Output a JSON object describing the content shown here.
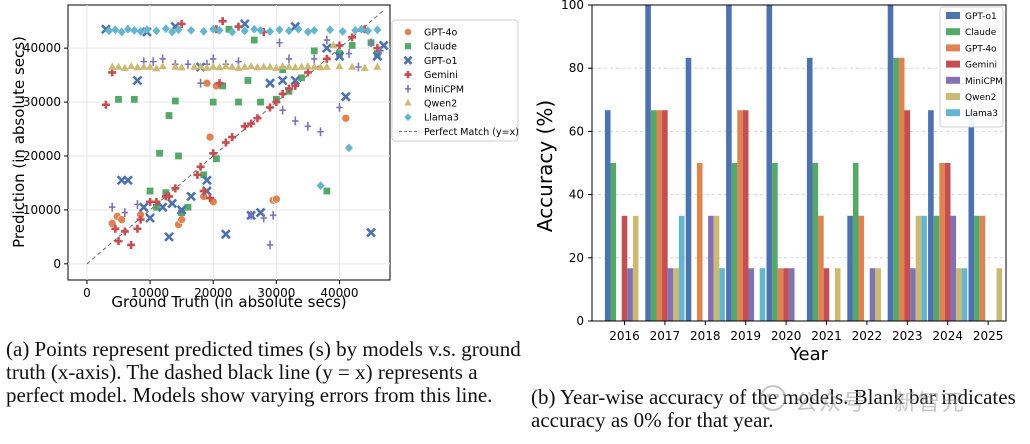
{
  "chart_data": [
    {
      "type": "scatter",
      "xlabel": "Ground Truth (in absolute secs)",
      "ylabel": "Prediction (in absolute secs)",
      "xlim": [
        -3000,
        48000
      ],
      "ylim": [
        -3000,
        48000
      ],
      "xticks": [
        0,
        10000,
        20000,
        30000,
        40000
      ],
      "yticks": [
        0,
        10000,
        20000,
        30000,
        40000
      ],
      "grid": true,
      "legend_position": "right",
      "reference_line": {
        "name": "Perfect Match (y=x)",
        "color": "#666666"
      },
      "series": [
        {
          "name": "GPT-4o",
          "color": "#dd8452",
          "marker": "circle",
          "points": [
            [
              4000,
              7500
            ],
            [
              4800,
              8800
            ],
            [
              5500,
              8200
            ],
            [
              8500,
              9100
            ],
            [
              14500,
              7300
            ],
            [
              19500,
              23500
            ],
            [
              19000,
              33500
            ],
            [
              20500,
              33000
            ],
            [
              18500,
              12500
            ],
            [
              20000,
              11500
            ],
            [
              29500,
              11800
            ],
            [
              30000,
              12000
            ],
            [
              41000,
              27000
            ],
            [
              15000,
              8200
            ]
          ]
        },
        {
          "name": "Claude",
          "color": "#55a868",
          "marker": "square",
          "points": [
            [
              5000,
              30500
            ],
            [
              7500,
              30500
            ],
            [
              10000,
              13500
            ],
            [
              11000,
              10500
            ],
            [
              11500,
              20500
            ],
            [
              12500,
              13200
            ],
            [
              13000,
              27500
            ],
            [
              14500,
              20000
            ],
            [
              15000,
              9500
            ],
            [
              16000,
              10500
            ],
            [
              18500,
              16500
            ],
            [
              20000,
              30000
            ],
            [
              20500,
              19500
            ],
            [
              21500,
              33000
            ],
            [
              24000,
              30000
            ],
            [
              25500,
              34000
            ],
            [
              26500,
              41500
            ],
            [
              27500,
              30000
            ],
            [
              30000,
              30500
            ],
            [
              31000,
              36000
            ],
            [
              32000,
              32000
            ],
            [
              34000,
              34500
            ],
            [
              36000,
              39500
            ],
            [
              38000,
              13500
            ],
            [
              40000,
              39000
            ],
            [
              42000,
              40500
            ],
            [
              45000,
              41000
            ],
            [
              46000,
              39000
            ],
            [
              22500,
              43500
            ],
            [
              14000,
              30200
            ]
          ]
        },
        {
          "name": "GPT-o1",
          "color": "#4c72b0",
          "marker": "x",
          "points": [
            [
              3000,
              43500
            ],
            [
              5500,
              15500
            ],
            [
              6500,
              15500
            ],
            [
              8000,
              34000
            ],
            [
              9000,
              10500
            ],
            [
              10000,
              8500
            ],
            [
              12000,
              10500
            ],
            [
              13000,
              5000
            ],
            [
              13500,
              11200
            ],
            [
              15000,
              10000
            ],
            [
              16500,
              12500
            ],
            [
              19000,
              13500
            ],
            [
              19000,
              15500
            ],
            [
              22000,
              5500
            ],
            [
              25000,
              44500
            ],
            [
              26000,
              9000
            ],
            [
              27500,
              9500
            ],
            [
              29000,
              33500
            ],
            [
              31000,
              34000
            ],
            [
              33000,
              34000
            ],
            [
              33000,
              44000
            ],
            [
              38000,
              40000
            ],
            [
              40000,
              38500
            ],
            [
              41000,
              31000
            ],
            [
              45000,
              5800
            ],
            [
              46000,
              38500
            ],
            [
              47000,
              40500
            ],
            [
              18000,
              36500
            ],
            [
              9500,
              43000
            ],
            [
              14000,
              44000
            ]
          ]
        },
        {
          "name": "Gemini",
          "color": "#c44e52",
          "marker": "plus",
          "points": [
            [
              3000,
              29500
            ],
            [
              4000,
              35500
            ],
            [
              4500,
              6500
            ],
            [
              5000,
              4200
            ],
            [
              6000,
              6000
            ],
            [
              7000,
              3500
            ],
            [
              8000,
              6500
            ],
            [
              8500,
              8200
            ],
            [
              10000,
              11500
            ],
            [
              11000,
              11500
            ],
            [
              12500,
              12500
            ],
            [
              13000,
              12500
            ],
            [
              14000,
              14000
            ],
            [
              15000,
              44500
            ],
            [
              17500,
              16500
            ],
            [
              18000,
              18000
            ],
            [
              18500,
              13500
            ],
            [
              19500,
              12200
            ],
            [
              20000,
              20500
            ],
            [
              20500,
              43500
            ],
            [
              21000,
              33500
            ],
            [
              21500,
              45000
            ],
            [
              22000,
              22500
            ],
            [
              23000,
              23500
            ],
            [
              24000,
              44000
            ],
            [
              25000,
              25500
            ],
            [
              26000,
              26000
            ],
            [
              27000,
              27000
            ],
            [
              28000,
              43000
            ],
            [
              29000,
              29000
            ],
            [
              30000,
              30000
            ],
            [
              31000,
              31500
            ],
            [
              32000,
              32500
            ],
            [
              33000,
              33000
            ],
            [
              35000,
              35500
            ],
            [
              38000,
              38000
            ],
            [
              40000,
              40500
            ],
            [
              42000,
              42000
            ],
            [
              44000,
              43500
            ],
            [
              46000,
              40000
            ]
          ]
        },
        {
          "name": "MiniCPM",
          "color": "#8172b3",
          "marker": "thin-plus",
          "points": [
            [
              4000,
              10500
            ],
            [
              6000,
              9500
            ],
            [
              8000,
              11000
            ],
            [
              9000,
              37500
            ],
            [
              10500,
              37500
            ],
            [
              12000,
              38000
            ],
            [
              14000,
              37000
            ],
            [
              16000,
              37000
            ],
            [
              18000,
              33500
            ],
            [
              19000,
              37000
            ],
            [
              20000,
              38000
            ],
            [
              22000,
              37000
            ],
            [
              24000,
              37500
            ],
            [
              26000,
              9000
            ],
            [
              28000,
              8500
            ],
            [
              29000,
              3500
            ],
            [
              29500,
              9000
            ],
            [
              30500,
              41000
            ],
            [
              32000,
              38000
            ],
            [
              33000,
              26500
            ],
            [
              35000,
              25500
            ],
            [
              36000,
              38000
            ],
            [
              37000,
              24500
            ],
            [
              38000,
              41500
            ],
            [
              40000,
              29000
            ],
            [
              41500,
              39000
            ],
            [
              43000,
              36500
            ],
            [
              45000,
              41000
            ],
            [
              46500,
              39500
            ],
            [
              31000,
              28500
            ]
          ]
        },
        {
          "name": "Qwen2",
          "color": "#ccb974",
          "marker": "triangle",
          "points": [
            [
              4000,
              36500
            ],
            [
              5000,
              36500
            ],
            [
              6000,
              36300
            ],
            [
              7000,
              36600
            ],
            [
              8000,
              36400
            ],
            [
              9000,
              36500
            ],
            [
              10000,
              36500
            ],
            [
              11000,
              36200
            ],
            [
              12000,
              36600
            ],
            [
              14000,
              36500
            ],
            [
              15000,
              36400
            ],
            [
              17000,
              36500
            ],
            [
              18000,
              36600
            ],
            [
              19000,
              36300
            ],
            [
              20000,
              36500
            ],
            [
              21000,
              36400
            ],
            [
              22000,
              36600
            ],
            [
              23000,
              36500
            ],
            [
              24000,
              36300
            ],
            [
              25000,
              36500
            ],
            [
              26000,
              36600
            ],
            [
              27000,
              36400
            ],
            [
              28000,
              36500
            ],
            [
              29000,
              36500
            ],
            [
              30000,
              36300
            ],
            [
              31000,
              36600
            ],
            [
              32000,
              36500
            ],
            [
              33000,
              36400
            ],
            [
              34000,
              36500
            ],
            [
              35000,
              36600
            ],
            [
              36000,
              36500
            ],
            [
              37000,
              36400
            ],
            [
              38000,
              36500
            ],
            [
              39000,
              40500
            ],
            [
              40000,
              36600
            ],
            [
              42000,
              36500
            ],
            [
              44000,
              36300
            ],
            [
              46000,
              36500
            ]
          ]
        },
        {
          "name": "Llama3",
          "color": "#64b5cd",
          "marker": "diamond",
          "points": [
            [
              3500,
              43200
            ],
            [
              4500,
              43400
            ],
            [
              5500,
              43000
            ],
            [
              6500,
              43500
            ],
            [
              7500,
              43300
            ],
            [
              8500,
              43100
            ],
            [
              9500,
              43400
            ],
            [
              11000,
              43200
            ],
            [
              12500,
              43600
            ],
            [
              13500,
              43000
            ],
            [
              14500,
              43400
            ],
            [
              16500,
              43300
            ],
            [
              18500,
              43100
            ],
            [
              20000,
              43500
            ],
            [
              21000,
              43300
            ],
            [
              23000,
              43000
            ],
            [
              25000,
              43200
            ],
            [
              26500,
              43500
            ],
            [
              27500,
              43300
            ],
            [
              29000,
              43100
            ],
            [
              30500,
              43400
            ],
            [
              32000,
              43200
            ],
            [
              33500,
              43500
            ],
            [
              35000,
              43000
            ],
            [
              36000,
              43300
            ],
            [
              37000,
              14500
            ],
            [
              38500,
              43400
            ],
            [
              40500,
              43100
            ],
            [
              41500,
              21500
            ],
            [
              42500,
              43300
            ],
            [
              43500,
              43500
            ],
            [
              44500,
              43200
            ],
            [
              46000,
              43400
            ]
          ]
        }
      ]
    },
    {
      "type": "bar",
      "xlabel": "Year",
      "ylabel": "Accuracy (%)",
      "ylim": [
        0,
        100
      ],
      "yticks": [
        0,
        20,
        40,
        60,
        80,
        100
      ],
      "grid": true,
      "legend_position": "top-right",
      "categories": [
        "2016",
        "2017",
        "2018",
        "2019",
        "2020",
        "2021",
        "2022",
        "2023",
        "2024",
        "2025"
      ],
      "series": [
        {
          "name": "GPT-o1",
          "color": "#4c72b0",
          "values": [
            66.7,
            100,
            83.3,
            100,
            100,
            83.3,
            33.3,
            100,
            66.7,
            66.7
          ]
        },
        {
          "name": "Claude",
          "color": "#55a868",
          "values": [
            50,
            66.7,
            0,
            50,
            50,
            50,
            50,
            83.3,
            33.3,
            33.3
          ]
        },
        {
          "name": "GPT-4o",
          "color": "#dd8452",
          "values": [
            0,
            66.7,
            50,
            66.7,
            16.7,
            33.3,
            33.3,
            83.3,
            50,
            33.3
          ]
        },
        {
          "name": "Gemini",
          "color": "#c44e52",
          "values": [
            33.3,
            66.7,
            0,
            66.7,
            16.7,
            16.7,
            0,
            66.7,
            50,
            0
          ]
        },
        {
          "name": "MiniCPM",
          "color": "#8172b3",
          "values": [
            16.7,
            16.7,
            33.3,
            16.7,
            16.7,
            0,
            16.7,
            16.7,
            33.3,
            0
          ]
        },
        {
          "name": "Qwen2",
          "color": "#ccb974",
          "values": [
            33.3,
            16.7,
            33.3,
            0,
            0,
            16.7,
            16.7,
            33.3,
            16.7,
            16.7
          ]
        },
        {
          "name": "Llama3",
          "color": "#64b5cd",
          "values": [
            0,
            33.3,
            16.7,
            16.7,
            0,
            0,
            0,
            33.3,
            16.7,
            0
          ]
        }
      ]
    }
  ],
  "captions": {
    "a": "(a) Points represent predicted times (s) by models v.s. ground truth (x-axis). The dashed black line (y = x) represents a perfect model. Models show varying errors from this line.",
    "b": "(b) Year-wise accuracy of the models. Blank bar indicates accuracy as 0% for that year."
  },
  "watermark": {
    "text": "公众号 · 新智元"
  }
}
